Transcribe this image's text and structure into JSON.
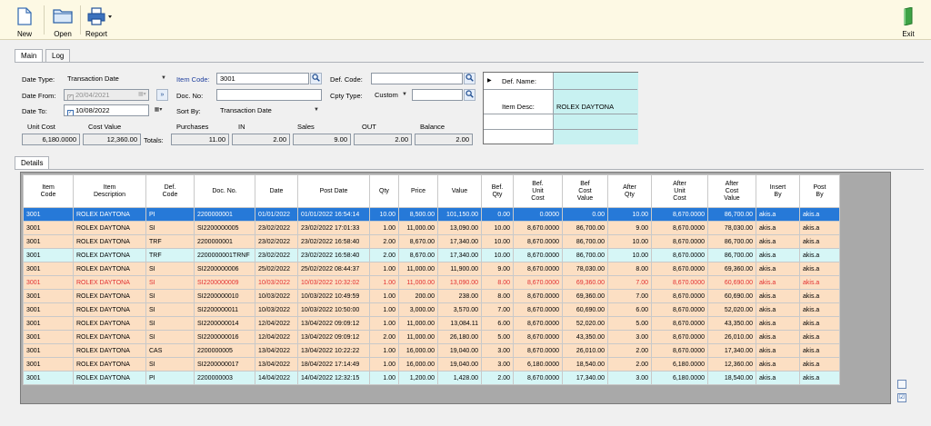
{
  "toolbar": {
    "new_label": "New",
    "open_label": "Open",
    "report_label": "Report",
    "exit_label": "Exit"
  },
  "tabs": {
    "main": "Main",
    "log": "Log",
    "details": "Details"
  },
  "filters": {
    "date_type_label": "Date Type:",
    "date_type_value": "Transaction Date",
    "item_code_label": "Item Code:",
    "item_code_value": "3001",
    "def_code_label": "Def. Code:",
    "def_code_value": "",
    "date_from_label": "Date From:",
    "date_from_value": "20/04/2021",
    "doc_no_label": "Doc. No:",
    "doc_no_value": "",
    "cpty_type_label": "Cpty Type:",
    "cpty_type_value": "Custom",
    "cpty_value": "",
    "date_to_label": "Date To:",
    "date_to_value": "10/08/2022",
    "sort_by_label": "Sort By:",
    "sort_by_value": "Transaction Date"
  },
  "defbox": {
    "def_name_label": "Def. Name:",
    "def_name_value": "",
    "item_desc_label": "Item Desc:",
    "item_desc_value": "ROLEX DAYTONA"
  },
  "totals": {
    "unit_cost_label": "Unit Cost",
    "cost_value_label": "Cost Value",
    "purchases_label": "Purchases",
    "in_label": "IN",
    "sales_label": "Sales",
    "out_label": "OUT",
    "balance_label": "Balance",
    "totals_label": "Totals:",
    "unit_cost": "6,180.0000",
    "cost_value": "12,360.00",
    "purchases": "11.00",
    "in": "2.00",
    "sales": "9.00",
    "out": "2.00",
    "balance": "2.00"
  },
  "grid": {
    "headers": [
      "Item\nCode",
      "Item\nDescription",
      "Def.\nCode",
      "Doc. No.",
      "Date",
      "Post Date",
      "Qty",
      "Price",
      "Value",
      "Bef.\nQty",
      "Bef.\nUnit\nCost",
      "Bef\nCost\nValue",
      "After\nQty",
      "After\nUnit\nCost",
      "After\nCost\nValue",
      "Insert\nBy",
      "Post\nBy"
    ],
    "rows": [
      {
        "style": "sel",
        "cells": [
          "3001",
          "ROLEX DAYTONA",
          "PI",
          "2200000001",
          "01/01/2022",
          "01/01/2022 16:54:14",
          "10.00",
          "8,500.00",
          "101,150.00",
          "0.00",
          "0.0000",
          "0.00",
          "10.00",
          "8,670.0000",
          "86,700.00",
          "akis.a",
          "akis.a"
        ]
      },
      {
        "style": "peach",
        "cells": [
          "3001",
          "ROLEX DAYTONA",
          "SI",
          "SI2200000005",
          "23/02/2022",
          "23/02/2022 17:01:33",
          "1.00",
          "11,000.00",
          "13,090.00",
          "10.00",
          "8,670.0000",
          "86,700.00",
          "9.00",
          "8,670.0000",
          "78,030.00",
          "akis.a",
          "akis.a"
        ]
      },
      {
        "style": "peach",
        "cells": [
          "3001",
          "ROLEX DAYTONA",
          "TRF",
          "2200000001",
          "23/02/2022",
          "23/02/2022 16:58:40",
          "2.00",
          "8,670.00",
          "17,340.00",
          "10.00",
          "8,670.0000",
          "86,700.00",
          "10.00",
          "8,670.0000",
          "86,700.00",
          "akis.a",
          "akis.a"
        ]
      },
      {
        "style": "cyan-r",
        "cells": [
          "3001",
          "ROLEX DAYTONA",
          "TRF",
          "2200000001TRNF",
          "23/02/2022",
          "23/02/2022 16:58:40",
          "2.00",
          "8,670.00",
          "17,340.00",
          "10.00",
          "8,670.0000",
          "86,700.00",
          "10.00",
          "8,670.0000",
          "86,700.00",
          "akis.a",
          "akis.a"
        ]
      },
      {
        "style": "peach",
        "cells": [
          "3001",
          "ROLEX DAYTONA",
          "SI",
          "SI2200000006",
          "25/02/2022",
          "25/02/2022 08:44:37",
          "1.00",
          "11,000.00",
          "11,900.00",
          "9.00",
          "8,670.0000",
          "78,030.00",
          "8.00",
          "8,670.0000",
          "69,360.00",
          "akis.a",
          "akis.a"
        ]
      },
      {
        "style": "peach red",
        "cells": [
          "3001",
          "ROLEX DAYTONA",
          "SI",
          "SI2200000009",
          "10/03/2022",
          "10/03/2022 10:32:02",
          "1.00",
          "11,000.00",
          "13,090.00",
          "8.00",
          "8,670.0000",
          "69,360.00",
          "7.00",
          "8,670.0000",
          "60,690.00",
          "akis.a",
          "akis.a"
        ]
      },
      {
        "style": "peach",
        "cells": [
          "3001",
          "ROLEX DAYTONA",
          "SI",
          "SI2200000010",
          "10/03/2022",
          "10/03/2022 10:49:59",
          "1.00",
          "200.00",
          "238.00",
          "8.00",
          "8,670.0000",
          "69,360.00",
          "7.00",
          "8,670.0000",
          "60,690.00",
          "akis.a",
          "akis.a"
        ]
      },
      {
        "style": "peach",
        "cells": [
          "3001",
          "ROLEX DAYTONA",
          "SI",
          "SI2200000011",
          "10/03/2022",
          "10/03/2022 10:50:00",
          "1.00",
          "3,000.00",
          "3,570.00",
          "7.00",
          "8,670.0000",
          "60,690.00",
          "6.00",
          "8,670.0000",
          "52,020.00",
          "akis.a",
          "akis.a"
        ]
      },
      {
        "style": "peach",
        "cells": [
          "3001",
          "ROLEX DAYTONA",
          "SI",
          "SI2200000014",
          "12/04/2022",
          "13/04/2022 09:09:12",
          "1.00",
          "11,000.00",
          "13,084.11",
          "6.00",
          "8,670.0000",
          "52,020.00",
          "5.00",
          "8,670.0000",
          "43,350.00",
          "akis.a",
          "akis.a"
        ]
      },
      {
        "style": "peach",
        "cells": [
          "3001",
          "ROLEX DAYTONA",
          "SI",
          "SI2200000016",
          "12/04/2022",
          "13/04/2022 09:09:12",
          "2.00",
          "11,000.00",
          "26,180.00",
          "5.00",
          "8,670.0000",
          "43,350.00",
          "3.00",
          "8,670.0000",
          "26,010.00",
          "akis.a",
          "akis.a"
        ]
      },
      {
        "style": "peach",
        "cells": [
          "3001",
          "ROLEX DAYTONA",
          "CAS",
          "2200000005",
          "13/04/2022",
          "13/04/2022 10:22:22",
          "1.00",
          "16,000.00",
          "19,040.00",
          "3.00",
          "8,670.0000",
          "26,010.00",
          "2.00",
          "8,670.0000",
          "17,340.00",
          "akis.a",
          "akis.a"
        ]
      },
      {
        "style": "peach",
        "cells": [
          "3001",
          "ROLEX DAYTONA",
          "SI",
          "SI2200000017",
          "13/04/2022",
          "18/04/2022 17:14:49",
          "1.00",
          "16,000.00",
          "19,040.00",
          "3.00",
          "6,180.0000",
          "18,540.00",
          "2.00",
          "6,180.0000",
          "12,360.00",
          "akis.a",
          "akis.a"
        ]
      },
      {
        "style": "cyan-r",
        "cells": [
          "3001",
          "ROLEX DAYTONA",
          "PI",
          "2200000003",
          "14/04/2022",
          "14/04/2022 12:32:15",
          "1.00",
          "1,200.00",
          "1,428.00",
          "2.00",
          "8,670.0000",
          "17,340.00",
          "3.00",
          "6,180.0000",
          "18,540.00",
          "akis.a",
          "akis.a"
        ]
      }
    ]
  },
  "icons": {
    "new": "new-document-icon",
    "open": "folder-icon",
    "report": "printer-icon",
    "exit": "exit-door-icon"
  }
}
